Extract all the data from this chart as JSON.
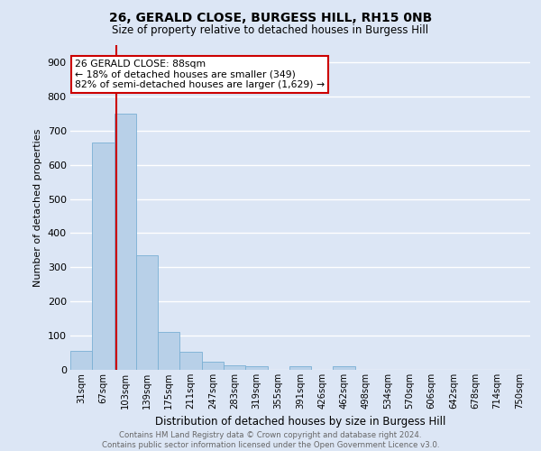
{
  "title1": "26, GERALD CLOSE, BURGESS HILL, RH15 0NB",
  "title2": "Size of property relative to detached houses in Burgess Hill",
  "xlabel": "Distribution of detached houses by size in Burgess Hill",
  "ylabel": "Number of detached properties",
  "bar_color": "#b8d0e8",
  "bar_edge_color": "#7aafd4",
  "background_color": "#dce6f5",
  "grid_color": "#ffffff",
  "categories": [
    "31sqm",
    "67sqm",
    "103sqm",
    "139sqm",
    "175sqm",
    "211sqm",
    "247sqm",
    "283sqm",
    "319sqm",
    "355sqm",
    "391sqm",
    "426sqm",
    "462sqm",
    "498sqm",
    "534sqm",
    "570sqm",
    "606sqm",
    "642sqm",
    "678sqm",
    "714sqm",
    "750sqm"
  ],
  "values": [
    55,
    665,
    750,
    335,
    110,
    53,
    25,
    14,
    10,
    0,
    10,
    0,
    10,
    0,
    0,
    0,
    0,
    0,
    0,
    0,
    0
  ],
  "annotation_text": "26 GERALD CLOSE: 88sqm\n← 18% of detached houses are smaller (349)\n82% of semi-detached houses are larger (1,629) →",
  "annotation_box_color": "#ffffff",
  "annotation_box_edge_color": "#cc0000",
  "vline_color": "#cc0000",
  "footnote": "Contains HM Land Registry data © Crown copyright and database right 2024.\nContains public sector information licensed under the Open Government Licence v3.0.",
  "ylim": [
    0,
    950
  ],
  "yticks": [
    0,
    100,
    200,
    300,
    400,
    500,
    600,
    700,
    800,
    900
  ],
  "vline_pos": 1.58
}
